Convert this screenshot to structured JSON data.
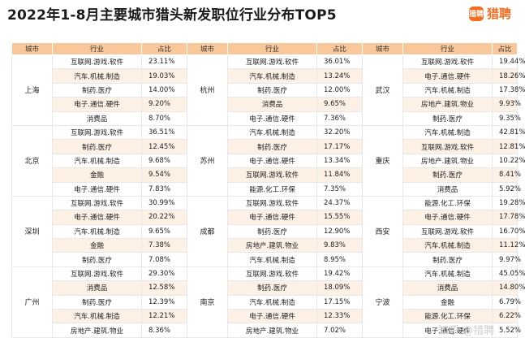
{
  "header": {
    "title": "2022年1-8月主要城市猎头新发职位行业分布TOP5",
    "logo_icon": "liepin-logo-icon",
    "logo_mark": "猎聘",
    "logo_text": "猎聘",
    "accent": "#f36d20"
  },
  "table": {
    "headers": [
      "城市",
      "行业",
      "占比",
      "城市",
      "行业",
      "占比",
      "城市",
      "行业",
      "占比"
    ],
    "row_alt_color": "#fdf1e6",
    "header_color": "#f8c79a",
    "groups": [
      {
        "left": {
          "city": "上海",
          "rows": [
            [
              "互联网.游戏.软件",
              "23.11%"
            ],
            [
              "汽车.机械.制造",
              "19.03%"
            ],
            [
              "制药.医疗",
              "14.00%"
            ],
            [
              "电子.通信.硬件",
              "9.20%"
            ],
            [
              "消费品",
              "8.70%"
            ]
          ]
        },
        "mid": {
          "city": "杭州",
          "rows": [
            [
              "互联网.游戏.软件",
              "36.01%"
            ],
            [
              "汽车.机械.制造",
              "13.24%"
            ],
            [
              "制药.医疗",
              "12.00%"
            ],
            [
              "消费品",
              "9.65%"
            ],
            [
              "电子.通信.硬件",
              "7.36%"
            ]
          ]
        },
        "right": {
          "city": "武汉",
          "rows": [
            [
              "互联网.游戏.软件",
              "19.44%"
            ],
            [
              "电子.通信.硬件",
              "18.26%"
            ],
            [
              "汽车.机械.制造",
              "17.38%"
            ],
            [
              "房地产.建筑.物业",
              "9.93%"
            ],
            [
              "制药.医疗",
              "9.35%"
            ]
          ]
        }
      },
      {
        "left": {
          "city": "北京",
          "rows": [
            [
              "互联网.游戏.软件",
              "36.51%"
            ],
            [
              "制药.医疗",
              "12.45%"
            ],
            [
              "汽车.机械.制造",
              "9.68%"
            ],
            [
              "金融",
              "9.54%"
            ],
            [
              "电子.通信.硬件",
              "7.83%"
            ]
          ]
        },
        "mid": {
          "city": "苏州",
          "rows": [
            [
              "汽车.机械.制造",
              "32.20%"
            ],
            [
              "制药.医疗",
              "17.17%"
            ],
            [
              "电子.通信.硬件",
              "13.34%"
            ],
            [
              "互联网.游戏.软件",
              "11.84%"
            ],
            [
              "能源.化工.环保",
              "7.35%"
            ]
          ]
        },
        "right": {
          "city": "重庆",
          "rows": [
            [
              "汽车.机械.制造",
              "42.81%"
            ],
            [
              "互联网.游戏.软件",
              "12.81%"
            ],
            [
              "房地产.建筑.物业",
              "10.22%"
            ],
            [
              "制药.医疗",
              "8.41%"
            ],
            [
              "消费品",
              "5.92%"
            ]
          ]
        }
      },
      {
        "left": {
          "city": "深圳",
          "rows": [
            [
              "互联网.游戏.软件",
              "30.99%"
            ],
            [
              "电子.通信.硬件",
              "20.22%"
            ],
            [
              "汽车.机械.制造",
              "9.65%"
            ],
            [
              "金融",
              "7.38%"
            ],
            [
              "制药.医疗",
              "7.08%"
            ]
          ]
        },
        "mid": {
          "city": "成都",
          "rows": [
            [
              "互联网.游戏.软件",
              "24.37%"
            ],
            [
              "电子.通信.硬件",
              "15.55%"
            ],
            [
              "制药.医疗",
              "12.90%"
            ],
            [
              "房地产.建筑.物业",
              "9.83%"
            ],
            [
              "汽车.机械.制造",
              "8.95%"
            ]
          ]
        },
        "right": {
          "city": "西安",
          "rows": [
            [
              "能源.化工.环保",
              "19.28%"
            ],
            [
              "电子.通信.硬件",
              "17.78%"
            ],
            [
              "互联网.游戏.软件",
              "16.70%"
            ],
            [
              "汽车.机械.制造",
              "11.12%"
            ],
            [
              "制药.医疗",
              "9.97%"
            ]
          ]
        }
      },
      {
        "left": {
          "city": "广州",
          "rows": [
            [
              "互联网.游戏.软件",
              "29.30%"
            ],
            [
              "消费品",
              "12.58%"
            ],
            [
              "制药.医疗",
              "12.39%"
            ],
            [
              "汽车.机械.制造",
              "12.21%"
            ],
            [
              "房地产.建筑.物业",
              "8.36%"
            ]
          ]
        },
        "mid": {
          "city": "南京",
          "rows": [
            [
              "互联网.游戏.软件",
              "19.42%"
            ],
            [
              "制药.医疗",
              "18.09%"
            ],
            [
              "汽车.机械.制造",
              "17.15%"
            ],
            [
              "电子.通信.硬件",
              "12.33%"
            ],
            [
              "房地产.建筑.物业",
              "7.02%"
            ]
          ]
        },
        "right": {
          "city": "宁波",
          "rows": [
            [
              "汽车.机械.制造",
              "45.05%"
            ],
            [
              "消费品",
              "14.80%"
            ],
            [
              "金融",
              "6.79%"
            ],
            [
              "能源.化工.环保",
              "6.22%"
            ],
            [
              "电子.通信.硬件",
              "5.52%"
            ]
          ]
        }
      }
    ]
  },
  "watermark": "知乎 @猎聘"
}
